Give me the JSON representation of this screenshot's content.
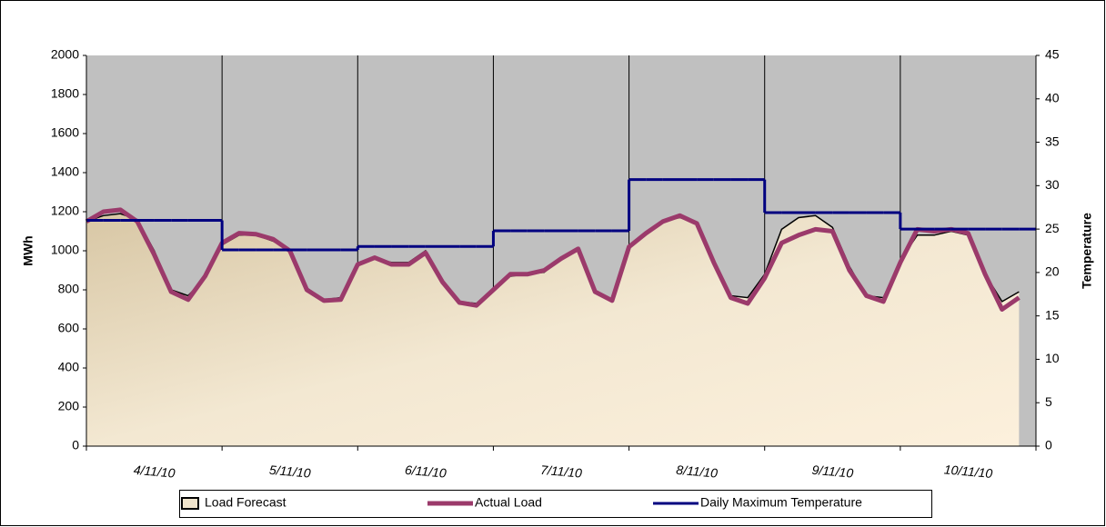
{
  "chart_data": {
    "type": "line",
    "categories": [
      null,
      null,
      null,
      null,
      "4/11/10",
      null,
      null,
      null,
      null,
      null,
      null,
      null,
      "5/11/10",
      null,
      null,
      null,
      null,
      null,
      null,
      null,
      "6/11/10",
      null,
      null,
      null,
      null,
      null,
      null,
      null,
      "7/11/10",
      null,
      null,
      null,
      null,
      null,
      null,
      null,
      "8/11/10",
      null,
      null,
      null,
      null,
      null,
      null,
      null,
      "9/11/10",
      null,
      null,
      null,
      null,
      null,
      null,
      null,
      "10/11/10",
      null,
      null,
      null
    ],
    "ylabel": "MWh",
    "y2label": "Temperature",
    "ylim": [
      0,
      2000
    ],
    "yticks": [
      0,
      200,
      400,
      600,
      800,
      1000,
      1200,
      1400,
      1600,
      1800,
      2000
    ],
    "y2lim": [
      0,
      45
    ],
    "y2ticks": [
      0,
      5,
      10,
      15,
      20,
      25,
      30,
      35,
      40,
      45
    ],
    "legend": "bottom",
    "series": [
      {
        "name": "Load Forecast",
        "style": "area",
        "color": "#000000",
        "values": [
          1150,
          1180,
          1190,
          1160,
          1000,
          800,
          770,
          860,
          1030,
          1080,
          1080,
          1050,
          1000,
          810,
          750,
          760,
          930,
          960,
          940,
          940,
          1000,
          850,
          740,
          730,
          810,
          870,
          880,
          890,
          960,
          1000,
          790,
          750,
          1020,
          1090,
          1150,
          1170,
          1140,
          950,
          770,
          760,
          880,
          1110,
          1170,
          1180,
          1120,
          920,
          770,
          760,
          950,
          1080,
          1080,
          1100,
          1080,
          880,
          740,
          790
        ]
      },
      {
        "name": "Actual Load",
        "style": "line",
        "color": "#9b3a6b",
        "values": [
          1150,
          1200,
          1210,
          1150,
          980,
          790,
          750,
          870,
          1040,
          1090,
          1085,
          1060,
          1000,
          800,
          745,
          750,
          930,
          965,
          930,
          930,
          990,
          840,
          735,
          720,
          800,
          880,
          880,
          900,
          960,
          1010,
          790,
          745,
          1020,
          1090,
          1150,
          1180,
          1140,
          940,
          760,
          730,
          860,
          1040,
          1080,
          1110,
          1100,
          900,
          770,
          740,
          940,
          1110,
          1100,
          1110,
          1090,
          880,
          700,
          760
        ]
      },
      {
        "name": "Daily Maximum Temperature",
        "style": "step",
        "color": "#000080",
        "axis": "y2",
        "values": [
          26,
          26,
          26,
          26,
          26,
          26,
          26,
          26,
          22.6,
          22.6,
          22.6,
          22.6,
          22.6,
          22.6,
          22.6,
          22.6,
          23,
          23,
          23,
          23,
          23,
          23,
          23,
          23,
          24.8,
          24.8,
          24.8,
          24.8,
          24.8,
          24.8,
          24.8,
          24.8,
          30.7,
          30.7,
          30.7,
          30.7,
          30.7,
          30.7,
          30.7,
          30.7,
          26.9,
          26.9,
          26.9,
          26.9,
          26.9,
          26.9,
          26.9,
          26.9,
          25,
          25,
          25,
          25,
          25,
          25,
          25,
          25
        ]
      }
    ]
  }
}
